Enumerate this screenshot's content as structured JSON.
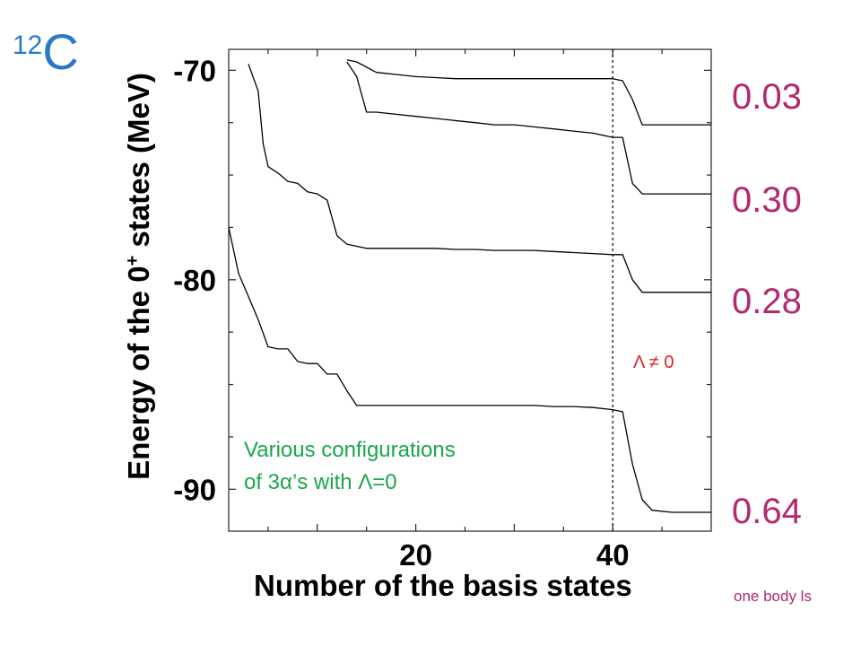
{
  "chart_data": {
    "type": "line",
    "xlabel": "Number of the basis states",
    "ylabel_prefix": "Energy of the 0",
    "ylabel_sup": "+",
    "ylabel_suffix": " states (MeV)",
    "xlim": [
      1,
      50
    ],
    "ylim": [
      -92,
      -69
    ],
    "xticks": [
      20,
      40
    ],
    "yticks": [
      -70,
      -80,
      -90
    ],
    "grid": false,
    "vline_x": 40,
    "series": [
      {
        "x": [
          1,
          1.5,
          2,
          3,
          4,
          5,
          6,
          7,
          8,
          9,
          10,
          11,
          12,
          13,
          14,
          15,
          16,
          18,
          20,
          22,
          24,
          26,
          28,
          30,
          32,
          34,
          36,
          38,
          40,
          41,
          42,
          43,
          44,
          46,
          48,
          50
        ],
        "y": [
          -77.5,
          -78.6,
          -79.7,
          -80.8,
          -81.9,
          -83.2,
          -83.3,
          -83.3,
          -83.9,
          -84.0,
          -84.0,
          -84.5,
          -84.5,
          -85.3,
          -86.0,
          -86.0,
          -86.0,
          -86.0,
          -86.0,
          -86.0,
          -86.0,
          -86.0,
          -86.0,
          -86.0,
          -86.0,
          -86.05,
          -86.05,
          -86.1,
          -86.2,
          -86.3,
          -88.8,
          -90.5,
          -91.0,
          -91.1,
          -91.1,
          -91.1
        ]
      },
      {
        "x": [
          3,
          4,
          4.5,
          5,
          6,
          7,
          8,
          9,
          10,
          11,
          12,
          13,
          14,
          15,
          16,
          18,
          20,
          22,
          24,
          26,
          28,
          30,
          32,
          34,
          36,
          38,
          40,
          41,
          42,
          43,
          44,
          46,
          48,
          50
        ],
        "y": [
          -69.7,
          -71.0,
          -73.5,
          -74.6,
          -74.9,
          -75.3,
          -75.4,
          -75.8,
          -75.9,
          -76.2,
          -77.9,
          -78.3,
          -78.4,
          -78.5,
          -78.5,
          -78.5,
          -78.5,
          -78.5,
          -78.55,
          -78.55,
          -78.6,
          -78.6,
          -78.6,
          -78.65,
          -78.7,
          -78.75,
          -78.8,
          -78.8,
          -80.0,
          -80.6,
          -80.6,
          -80.6,
          -80.6,
          -80.6
        ]
      },
      {
        "x": [
          13,
          14,
          15,
          16,
          18,
          20,
          22,
          24,
          26,
          28,
          30,
          32,
          34,
          36,
          38,
          40,
          41,
          42,
          43,
          44,
          46,
          48,
          50
        ],
        "y": [
          -69.6,
          -70.3,
          -72.0,
          -72.0,
          -72.1,
          -72.2,
          -72.3,
          -72.4,
          -72.5,
          -72.6,
          -72.6,
          -72.7,
          -72.8,
          -72.9,
          -73.0,
          -73.2,
          -73.2,
          -75.4,
          -75.9,
          -75.9,
          -75.9,
          -75.9,
          -75.9
        ]
      },
      {
        "x": [
          13,
          14,
          16,
          18,
          20,
          22,
          24,
          26,
          28,
          30,
          32,
          34,
          36,
          38,
          40,
          41,
          42,
          43,
          44,
          46,
          48,
          50
        ],
        "y": [
          -69.5,
          -69.6,
          -70.1,
          -70.2,
          -70.3,
          -70.35,
          -70.4,
          -70.4,
          -70.4,
          -70.4,
          -70.4,
          -70.4,
          -70.4,
          -70.4,
          -70.4,
          -70.5,
          -71.4,
          -72.6,
          -72.6,
          -72.6,
          -72.6,
          -72.6
        ]
      }
    ]
  },
  "isotope": {
    "mass": "12",
    "symbol": "C"
  },
  "side_values": [
    "0.03",
    "0.30",
    "0.28",
    "0.64"
  ],
  "annotation_red": "Λ ≠ 0",
  "annotation_green": [
    "Various configurations",
    "of 3α’s  with Λ=0"
  ],
  "footnote": "one body ls",
  "colors": {
    "isotope": "#2a79c9",
    "side_values": "#b3286f",
    "red": "#e02020",
    "green": "#1aa64a"
  }
}
